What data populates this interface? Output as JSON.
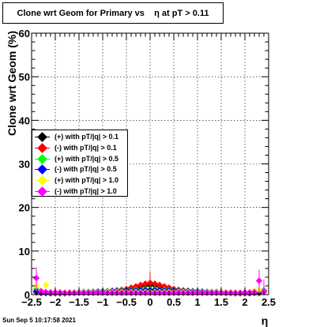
{
  "title": "Clone wrt Geom for Primary vs    η at pT > 0.11",
  "timestamp": "Sun Sep  5 10:17:58 2021",
  "chart_data": {
    "type": "scatter",
    "title": "Clone wrt Geom for Primary vs    η at pT > 0.11",
    "xlabel": "η",
    "ylabel": "Clone wrt Geom (%)",
    "xlim": [
      -2.5,
      2.5
    ],
    "ylim": [
      0,
      60
    ],
    "grid": true,
    "legend_position": "left-middle",
    "x_ticks": [
      "−2.5",
      "−2",
      "−1.5",
      "−1",
      "−0.5",
      "0",
      "0.5",
      "1",
      "1.5",
      "2",
      "2.5"
    ],
    "y_ticks": [
      "0",
      "10",
      "20",
      "30",
      "40",
      "50",
      "60"
    ],
    "x": [
      -2.4,
      -2.3,
      -2.2,
      -2.1,
      -2.0,
      -1.9,
      -1.8,
      -1.7,
      -1.6,
      -1.5,
      -1.4,
      -1.3,
      -1.2,
      -1.1,
      -1.0,
      -0.9,
      -0.8,
      -0.7,
      -0.6,
      -0.5,
      -0.4,
      -0.3,
      -0.2,
      -0.1,
      0.0,
      0.1,
      0.2,
      0.3,
      0.4,
      0.5,
      0.6,
      0.7,
      0.8,
      0.9,
      1.0,
      1.1,
      1.2,
      1.3,
      1.4,
      1.5,
      1.6,
      1.7,
      1.8,
      1.9,
      2.0,
      2.1,
      2.2,
      2.3,
      2.4
    ],
    "series": [
      {
        "name": "(+) with pT/|q| > 0.1",
        "color": "#000000",
        "values": [
          0.6,
          0.4,
          0.4,
          0.3,
          0.3,
          0.3,
          0.3,
          0.4,
          0.4,
          0.5,
          0.5,
          0.5,
          0.6,
          0.6,
          0.7,
          0.7,
          0.8,
          0.9,
          1.0,
          1.2,
          1.4,
          1.6,
          1.9,
          2.1,
          2.2,
          2.1,
          1.9,
          1.6,
          1.4,
          1.2,
          1.0,
          0.9,
          0.8,
          0.7,
          0.7,
          0.6,
          0.6,
          0.5,
          0.5,
          0.5,
          0.4,
          0.4,
          0.3,
          0.3,
          0.3,
          0.3,
          0.4,
          0.4,
          0.8
        ]
      },
      {
        "name": "(-) with pT/|q| > 0.1",
        "color": "#ff0000",
        "values": [
          0.5,
          0.4,
          0.4,
          0.3,
          0.3,
          0.3,
          0.3,
          0.4,
          0.4,
          0.5,
          0.5,
          0.5,
          0.6,
          0.6,
          0.7,
          0.8,
          0.9,
          1.0,
          1.1,
          1.3,
          1.6,
          1.9,
          2.2,
          2.5,
          2.7,
          2.5,
          2.2,
          1.9,
          1.6,
          1.3,
          1.1,
          1.0,
          0.9,
          0.8,
          0.7,
          0.6,
          0.6,
          0.5,
          0.5,
          0.5,
          0.4,
          0.4,
          0.3,
          0.3,
          0.3,
          0.3,
          0.4,
          0.4,
          0.6
        ]
      },
      {
        "name": "(+) with pT/|q| > 0.5",
        "color": "#00ff00",
        "values": [
          1.2,
          0.6,
          0.5,
          0.4,
          0.4,
          0.4,
          0.5,
          0.5,
          0.5,
          0.6,
          0.6,
          0.6,
          0.7,
          0.7,
          0.7,
          0.8,
          0.8,
          0.9,
          0.9,
          1.0,
          1.0,
          1.1,
          1.1,
          1.2,
          1.2,
          1.2,
          1.1,
          1.1,
          1.0,
          1.0,
          0.9,
          0.9,
          0.8,
          0.8,
          0.7,
          0.7,
          0.7,
          0.6,
          0.6,
          0.6,
          0.5,
          0.5,
          0.5,
          0.4,
          0.4,
          0.4,
          0.5,
          0.6,
          1.0
        ]
      },
      {
        "name": "(-) with pT/|q| > 0.5",
        "color": "#0000ff",
        "values": [
          0.8,
          0.5,
          0.4,
          0.4,
          0.4,
          0.4,
          0.4,
          0.5,
          0.5,
          0.5,
          0.6,
          0.6,
          0.6,
          0.7,
          0.7,
          0.7,
          0.8,
          0.8,
          0.8,
          0.9,
          0.9,
          0.9,
          1.0,
          1.0,
          1.0,
          1.0,
          1.0,
          0.9,
          0.9,
          0.9,
          0.8,
          0.8,
          0.8,
          0.7,
          0.7,
          0.7,
          0.6,
          0.6,
          0.6,
          0.5,
          0.5,
          0.5,
          0.4,
          0.4,
          0.4,
          0.4,
          0.5,
          0.6,
          0.9
        ]
      },
      {
        "name": "(+) with pT/|q| > 1.0",
        "color": "#ffff00",
        "values": [
          2.0,
          0.9,
          2.2,
          0.6,
          0.5,
          0.5,
          0.5,
          0.5,
          0.5,
          0.5,
          0.5,
          0.5,
          0.5,
          0.5,
          0.5,
          0.6,
          0.6,
          0.6,
          0.6,
          0.6,
          0.6,
          0.6,
          0.6,
          0.6,
          0.6,
          0.6,
          0.6,
          0.6,
          0.6,
          0.6,
          0.6,
          0.6,
          0.6,
          0.5,
          0.5,
          0.5,
          0.5,
          0.5,
          0.5,
          0.5,
          0.5,
          0.5,
          0.5,
          0.5,
          0.5,
          0.6,
          0.9,
          1.0,
          0.8
        ]
      },
      {
        "name": "(-) with pT/|q| > 1.0",
        "color": "#ff00ff",
        "values": [
          3.8,
          0.8,
          0.6,
          0.5,
          0.5,
          0.5,
          0.4,
          0.4,
          0.4,
          0.4,
          0.4,
          0.4,
          0.4,
          0.4,
          0.4,
          0.4,
          0.4,
          0.4,
          0.4,
          0.4,
          0.4,
          0.4,
          0.4,
          0.4,
          0.4,
          0.4,
          0.4,
          0.4,
          0.4,
          0.4,
          0.4,
          0.4,
          0.4,
          0.4,
          0.4,
          0.4,
          0.4,
          0.4,
          0.4,
          0.4,
          0.4,
          0.4,
          0.4,
          0.4,
          0.5,
          0.5,
          0.6,
          3.2,
          0.7
        ]
      }
    ]
  }
}
